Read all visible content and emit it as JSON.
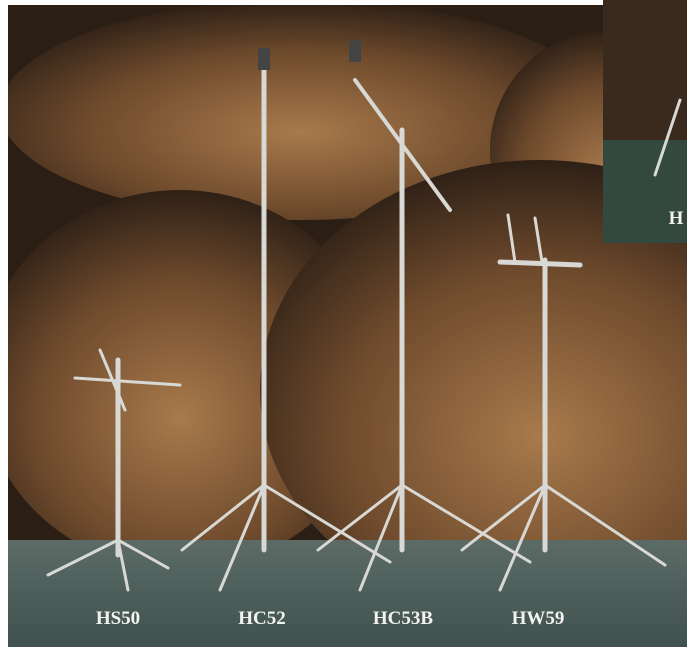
{
  "labels": [
    "HS50",
    "HC52",
    "HC53B",
    "HW59"
  ],
  "inset": {
    "label": "H"
  }
}
